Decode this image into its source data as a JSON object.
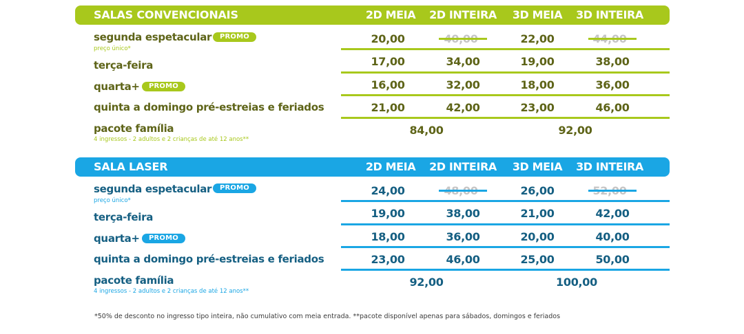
{
  "columns": [
    "2D MEIA",
    "2D INTEIRA",
    "3D MEIA",
    "3D INTEIRA"
  ],
  "sections": [
    {
      "title": "SALAS CONVENCIONAIS",
      "accent_color": "#a8c81c",
      "text_color": "#5e6418",
      "rows": [
        {
          "label": "segunda espetacular",
          "promo": "PROMO",
          "sub": "preço único*",
          "prices": [
            "20,00",
            "40,00",
            "22,00",
            "44,00"
          ],
          "struck": [
            false,
            true,
            false,
            true
          ]
        },
        {
          "label": "terça-feira",
          "prices": [
            "17,00",
            "34,00",
            "19,00",
            "38,00"
          ]
        },
        {
          "label": "quarta+",
          "promo": "PROMO",
          "prices": [
            "16,00",
            "32,00",
            "18,00",
            "36,00"
          ]
        },
        {
          "label": "quinta a domingo pré-estreias e feriados",
          "prices": [
            "21,00",
            "42,00",
            "23,00",
            "46,00"
          ]
        },
        {
          "label": "pacote família",
          "sub": "4 ingressos - 2 adultos e 2 crianças de até 12 anos**",
          "prices_2d": "84,00",
          "prices_3d": "92,00"
        }
      ]
    },
    {
      "title": "SALA LASER",
      "accent_color": "#1aa6e4",
      "text_color": "#155f82",
      "rows": [
        {
          "label": "segunda espetacular",
          "promo": "PROMO",
          "sub": "preço único*",
          "prices": [
            "24,00",
            "48,00",
            "26,00",
            "52,00"
          ],
          "struck": [
            false,
            true,
            false,
            true
          ]
        },
        {
          "label": "terça-feira",
          "prices": [
            "19,00",
            "38,00",
            "21,00",
            "42,00"
          ]
        },
        {
          "label": "quarta+",
          "promo": "PROMO",
          "prices": [
            "18,00",
            "36,00",
            "20,00",
            "40,00"
          ]
        },
        {
          "label": "quinta a domingo pré-estreias e feriados",
          "prices": [
            "23,00",
            "46,00",
            "25,00",
            "50,00"
          ]
        },
        {
          "label": "pacote família",
          "sub": "4 ingressos - 2 adultos e 2 crianças de até 12 anos**",
          "prices_2d": "92,00",
          "prices_3d": "100,00"
        }
      ]
    }
  ],
  "footnote": "*50% de desconto no ingresso tipo inteira, não cumulativo com meia entrada. **pacote disponível apenas para sábados, domingos e feriados"
}
